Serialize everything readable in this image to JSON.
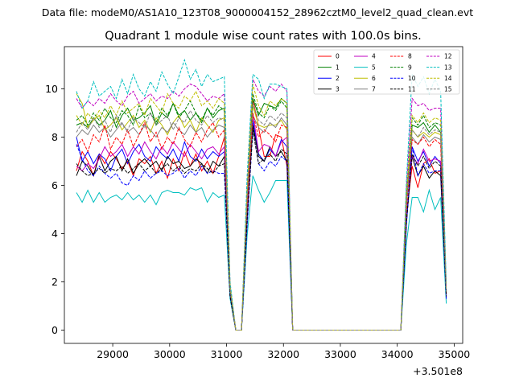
{
  "figure": {
    "suptitle": "Data file: modeM0/AS1A10_123T08_9000004152_28962cztM0_level2_quad_clean.evt"
  },
  "chart_data": {
    "type": "line",
    "title": "Quadrant 1 module wise count rates with 100.0s bins.",
    "xlabel": "",
    "ylabel": "",
    "x_offset_label": "+3.501e8",
    "xlim": [
      28150,
      35150
    ],
    "ylim": [
      -0.55,
      11.75
    ],
    "x_ticks": [
      29000,
      30000,
      31000,
      32000,
      33000,
      34000,
      35000
    ],
    "x_tick_labels": [
      "29000",
      "30000",
      "31000",
      "32000",
      "33000",
      "34000",
      "35000"
    ],
    "y_ticks": [
      0,
      2,
      4,
      6,
      8,
      10
    ],
    "y_tick_labels": [
      "0",
      "2",
      "4",
      "6",
      "8",
      "10"
    ],
    "grid": false,
    "legend_position": "top-right",
    "legend_columns": 4,
    "x": [
      28362,
      28462,
      28562,
      28662,
      28762,
      28862,
      28962,
      29062,
      29162,
      29262,
      29362,
      29462,
      29562,
      29662,
      29762,
      29862,
      29962,
      30062,
      30162,
      30262,
      30362,
      30462,
      30562,
      30662,
      30762,
      30862,
      30962,
      31062,
      31162,
      31262,
      31362,
      31462,
      31562,
      31662,
      31762,
      31862,
      31962,
      32062,
      32162,
      32262,
      32362,
      32462,
      32562,
      32662,
      32762,
      32862,
      32962,
      33062,
      33162,
      33262,
      33362,
      33462,
      33562,
      33662,
      33762,
      33862,
      33962,
      34062,
      34162,
      34262,
      34362,
      34462,
      34562,
      34662,
      34762,
      34862
    ],
    "series": [
      {
        "name": "0",
        "color": "#ff0000",
        "dash": "solid",
        "values": [
          6.6,
          7.4,
          7.0,
          6.4,
          7.3,
          6.9,
          7.4,
          7.1,
          6.7,
          7.0,
          6.4,
          7.1,
          6.9,
          7.2,
          6.5,
          7.0,
          6.3,
          7.1,
          6.6,
          7.4,
          6.8,
          7.3,
          6.6,
          7.0,
          6.5,
          7.2,
          8.0,
          1.6,
          0.0,
          0.0,
          4.8,
          9.6,
          8.4,
          7.2,
          7.2,
          8.1,
          8.0,
          6.8,
          0.0,
          0.0,
          0.0,
          0.0,
          0.0,
          0.0,
          0.0,
          0.0,
          0.0,
          0.0,
          0.0,
          0.0,
          0.0,
          0.0,
          0.0,
          0.0,
          0.0,
          0.0,
          0.0,
          0.0,
          4.8,
          6.8,
          5.9,
          6.9,
          7.1,
          6.5,
          6.6,
          1.5
        ]
      },
      {
        "name": "1",
        "color": "#008000",
        "dash": "solid",
        "values": [
          8.5,
          8.6,
          8.4,
          8.8,
          8.5,
          8.7,
          9.1,
          8.4,
          8.9,
          9.2,
          8.7,
          8.8,
          9.0,
          9.3,
          8.5,
          9.0,
          8.8,
          9.4,
          8.9,
          9.1,
          8.7,
          9.0,
          8.6,
          9.2,
          8.8,
          9.1,
          9.2,
          1.7,
          0.0,
          0.0,
          5.6,
          9.6,
          8.9,
          9.4,
          9.3,
          9.2,
          9.6,
          9.4,
          0.0,
          0.0,
          0.0,
          0.0,
          0.0,
          0.0,
          0.0,
          0.0,
          0.0,
          0.0,
          0.0,
          0.0,
          0.0,
          0.0,
          0.0,
          0.0,
          0.0,
          0.0,
          0.0,
          0.0,
          5.4,
          8.5,
          8.4,
          8.6,
          8.2,
          8.5,
          8.2,
          1.6
        ]
      },
      {
        "name": "2",
        "color": "#0000ff",
        "dash": "solid",
        "values": [
          8.0,
          7.0,
          7.4,
          6.9,
          7.3,
          7.1,
          6.6,
          7.2,
          7.5,
          6.9,
          7.4,
          7.7,
          7.2,
          7.0,
          7.6,
          7.3,
          7.1,
          7.5,
          7.0,
          7.8,
          7.2,
          7.0,
          7.5,
          7.1,
          7.4,
          7.2,
          7.4,
          1.5,
          0.0,
          0.0,
          4.5,
          8.7,
          7.3,
          7.0,
          7.5,
          7.2,
          7.9,
          7.6,
          0.0,
          0.0,
          0.0,
          0.0,
          0.0,
          0.0,
          0.0,
          0.0,
          0.0,
          0.0,
          0.0,
          0.0,
          0.0,
          0.0,
          0.0,
          0.0,
          0.0,
          0.0,
          0.0,
          0.0,
          4.4,
          7.6,
          7.0,
          7.4,
          6.8,
          7.2,
          6.9,
          1.3
        ]
      },
      {
        "name": "3",
        "color": "#000000",
        "dash": "solid",
        "values": [
          6.4,
          7.0,
          6.8,
          6.4,
          7.2,
          6.6,
          7.0,
          7.2,
          6.6,
          7.1,
          6.5,
          6.9,
          7.1,
          6.8,
          7.0,
          6.6,
          7.2,
          6.9,
          7.0,
          6.7,
          6.8,
          7.1,
          6.9,
          6.5,
          7.0,
          6.8,
          7.2,
          1.5,
          0.0,
          0.0,
          4.8,
          8.5,
          7.2,
          7.0,
          7.6,
          7.2,
          7.4,
          7.0,
          0.0,
          0.0,
          0.0,
          0.0,
          0.0,
          0.0,
          0.0,
          0.0,
          0.0,
          0.0,
          0.0,
          0.0,
          0.0,
          0.0,
          0.0,
          0.0,
          0.0,
          0.0,
          0.0,
          0.0,
          4.5,
          7.2,
          6.4,
          6.8,
          6.3,
          6.6,
          6.4,
          1.4
        ]
      },
      {
        "name": "4",
        "color": "#c000c0",
        "dash": "solid",
        "values": [
          6.8,
          6.6,
          6.9,
          6.7,
          7.1,
          7.6,
          7.2,
          7.4,
          7.7,
          7.2,
          7.6,
          7.3,
          7.8,
          7.4,
          7.1,
          7.6,
          7.3,
          7.8,
          7.5,
          7.2,
          7.7,
          7.4,
          7.1,
          7.5,
          7.6,
          7.3,
          7.6,
          1.5,
          0.0,
          0.0,
          4.9,
          9.0,
          7.4,
          7.7,
          7.6,
          7.2,
          7.8,
          8.0,
          0.0,
          0.0,
          0.0,
          0.0,
          0.0,
          0.0,
          0.0,
          0.0,
          0.0,
          0.0,
          0.0,
          0.0,
          0.0,
          0.0,
          0.0,
          0.0,
          0.0,
          0.0,
          0.0,
          0.0,
          4.7,
          7.2,
          6.9,
          7.5,
          7.0,
          7.1,
          7.0,
          1.4
        ]
      },
      {
        "name": "5",
        "color": "#00bfbf",
        "dash": "solid",
        "values": [
          5.7,
          5.3,
          5.8,
          5.3,
          5.7,
          5.3,
          5.5,
          5.6,
          5.4,
          5.7,
          5.4,
          5.6,
          5.3,
          5.6,
          5.2,
          5.7,
          5.8,
          5.7,
          5.7,
          5.6,
          5.9,
          5.8,
          5.9,
          5.3,
          5.7,
          5.5,
          5.6,
          1.3,
          0.0,
          0.0,
          3.9,
          6.4,
          5.8,
          5.3,
          5.7,
          6.2,
          6.2,
          6.2,
          0.0,
          0.0,
          0.0,
          0.0,
          0.0,
          0.0,
          0.0,
          0.0,
          0.0,
          0.0,
          0.0,
          0.0,
          0.0,
          0.0,
          0.0,
          0.0,
          0.0,
          0.0,
          0.0,
          0.0,
          3.6,
          5.5,
          5.5,
          4.9,
          5.8,
          5.0,
          5.5,
          1.1
        ]
      },
      {
        "name": "6",
        "color": "#bfbf00",
        "dash": "solid",
        "values": [
          9.8,
          9.4,
          8.4,
          8.7,
          8.9,
          8.3,
          8.5,
          8.8,
          8.3,
          8.6,
          8.9,
          8.4,
          8.7,
          8.2,
          8.8,
          8.5,
          8.1,
          8.6,
          8.9,
          8.4,
          8.7,
          8.2,
          8.8,
          8.5,
          8.2,
          8.7,
          8.8,
          1.7,
          0.0,
          0.0,
          5.5,
          9.3,
          8.5,
          8.4,
          8.5,
          8.5,
          8.7,
          8.3,
          0.0,
          0.0,
          0.0,
          0.0,
          0.0,
          0.0,
          0.0,
          0.0,
          0.0,
          0.0,
          0.0,
          0.0,
          0.0,
          0.0,
          0.0,
          0.0,
          0.0,
          0.0,
          0.0,
          0.0,
          5.3,
          8.3,
          8.0,
          8.2,
          8.0,
          8.2,
          8.1,
          1.6
        ]
      },
      {
        "name": "7",
        "color": "#808080",
        "dash": "solid",
        "values": [
          8.0,
          8.3,
          8.1,
          8.5,
          8.2,
          8.4,
          8.0,
          8.3,
          8.6,
          8.2,
          8.4,
          8.1,
          8.5,
          8.3,
          8.0,
          8.4,
          8.2,
          8.6,
          8.3,
          8.1,
          8.5,
          8.2,
          8.4,
          8.0,
          8.3,
          8.5,
          8.4,
          1.6,
          0.0,
          0.0,
          5.3,
          8.9,
          8.4,
          8.2,
          8.6,
          8.4,
          8.8,
          8.5,
          0.0,
          0.0,
          0.0,
          0.0,
          0.0,
          0.0,
          0.0,
          0.0,
          0.0,
          0.0,
          0.0,
          0.0,
          0.0,
          0.0,
          0.0,
          0.0,
          0.0,
          0.0,
          0.0,
          0.0,
          5.1,
          8.0,
          7.7,
          8.1,
          7.8,
          8.0,
          7.9,
          1.5
        ]
      },
      {
        "name": "8",
        "color": "#ff0000",
        "dash": "dashed",
        "values": [
          7.6,
          7.9,
          7.4,
          8.1,
          7.8,
          8.5,
          7.5,
          8.0,
          7.7,
          8.3,
          7.6,
          8.1,
          8.6,
          7.8,
          8.2,
          7.5,
          8.0,
          7.7,
          8.4,
          7.9,
          7.6,
          8.2,
          7.8,
          8.3,
          8.6,
          8.0,
          8.3,
          1.6,
          0.0,
          0.0,
          5.0,
          9.0,
          8.0,
          8.3,
          8.1,
          7.8,
          8.5,
          8.4,
          0.0,
          0.0,
          0.0,
          0.0,
          0.0,
          0.0,
          0.0,
          0.0,
          0.0,
          0.0,
          0.0,
          0.0,
          0.0,
          0.0,
          0.0,
          0.0,
          0.0,
          0.0,
          0.0,
          0.0,
          5.0,
          7.9,
          7.7,
          8.0,
          7.6,
          7.9,
          7.7,
          1.5
        ]
      },
      {
        "name": "9",
        "color": "#008000",
        "dash": "dashed",
        "values": [
          8.7,
          8.9,
          8.5,
          9.0,
          8.7,
          9.2,
          8.8,
          8.6,
          9.1,
          8.9,
          8.5,
          9.3,
          8.8,
          9.0,
          8.6,
          9.2,
          8.9,
          9.4,
          8.8,
          9.1,
          9.5,
          9.0,
          8.7,
          9.2,
          8.9,
          9.3,
          9.1,
          1.7,
          0.0,
          0.0,
          5.6,
          9.8,
          9.0,
          8.8,
          9.3,
          9.1,
          9.5,
          9.2,
          0.0,
          0.0,
          0.0,
          0.0,
          0.0,
          0.0,
          0.0,
          0.0,
          0.0,
          0.0,
          0.0,
          0.0,
          0.0,
          0.0,
          0.0,
          0.0,
          0.0,
          0.0,
          0.0,
          0.0,
          5.5,
          8.8,
          8.5,
          8.9,
          8.4,
          8.6,
          8.5,
          1.6
        ]
      },
      {
        "name": "10",
        "color": "#0000ff",
        "dash": "dashed",
        "values": [
          7.7,
          7.1,
          6.6,
          6.4,
          6.8,
          6.5,
          6.3,
          6.5,
          6.1,
          6.0,
          6.4,
          6.2,
          6.6,
          6.3,
          6.5,
          6.6,
          6.4,
          6.5,
          6.7,
          6.3,
          6.6,
          6.4,
          6.8,
          6.5,
          6.6,
          6.5,
          6.5,
          1.4,
          0.0,
          0.0,
          4.3,
          8.3,
          6.9,
          6.6,
          7.0,
          6.8,
          7.2,
          7.0,
          0.0,
          0.0,
          0.0,
          0.0,
          0.0,
          0.0,
          0.0,
          0.0,
          0.0,
          0.0,
          0.0,
          0.0,
          0.0,
          0.0,
          0.0,
          0.0,
          0.0,
          0.0,
          0.0,
          0.0,
          4.4,
          7.6,
          6.4,
          6.9,
          6.5,
          6.6,
          6.6,
          1.3
        ]
      },
      {
        "name": "11",
        "color": "#000000",
        "dash": "dashed",
        "values": [
          6.9,
          6.6,
          6.4,
          6.5,
          6.7,
          6.5,
          6.7,
          6.6,
          6.8,
          6.5,
          6.7,
          6.9,
          6.6,
          6.8,
          6.5,
          6.7,
          6.9,
          6.6,
          6.8,
          6.5,
          6.7,
          6.6,
          6.9,
          6.7,
          6.5,
          6.8,
          6.9,
          1.4,
          0.0,
          0.0,
          4.6,
          8.3,
          6.9,
          7.1,
          7.3,
          7.0,
          7.5,
          7.3,
          0.0,
          0.0,
          0.0,
          0.0,
          0.0,
          0.0,
          0.0,
          0.0,
          0.0,
          0.0,
          0.0,
          0.0,
          0.0,
          0.0,
          0.0,
          0.0,
          0.0,
          0.0,
          0.0,
          0.0,
          4.5,
          7.3,
          6.8,
          7.2,
          6.7,
          7.0,
          6.8,
          1.4
        ]
      },
      {
        "name": "12",
        "color": "#c000c0",
        "dash": "dashed",
        "values": [
          9.6,
          9.2,
          9.5,
          9.3,
          9.6,
          9.4,
          9.8,
          9.5,
          9.3,
          9.7,
          9.9,
          9.4,
          9.6,
          9.8,
          9.5,
          9.7,
          9.6,
          9.9,
          9.7,
          10.0,
          10.2,
          10.1,
          9.8,
          9.5,
          9.7,
          9.6,
          9.8,
          1.9,
          0.0,
          0.0,
          6.0,
          10.4,
          9.9,
          9.7,
          10.1,
          9.9,
          10.2,
          9.9,
          0.0,
          0.0,
          0.0,
          0.0,
          0.0,
          0.0,
          0.0,
          0.0,
          0.0,
          0.0,
          0.0,
          0.0,
          0.0,
          0.0,
          0.0,
          0.0,
          0.0,
          0.0,
          0.0,
          0.0,
          5.9,
          9.6,
          9.3,
          9.4,
          9.1,
          9.2,
          9.2,
          1.8
        ]
      },
      {
        "name": "13",
        "color": "#00bfbf",
        "dash": "dashed",
        "values": [
          9.9,
          9.2,
          9.5,
          10.3,
          9.7,
          9.9,
          10.1,
          9.6,
          10.4,
          9.8,
          10.6,
          10.0,
          9.7,
          10.3,
          9.9,
          10.7,
          10.2,
          9.8,
          10.5,
          11.2,
          10.4,
          10.8,
          10.1,
          10.6,
          10.3,
          10.4,
          10.5,
          2.0,
          0.0,
          0.0,
          6.4,
          10.6,
          10.4,
          9.6,
          10.2,
          10.2,
          10.1,
          10.0,
          0.0,
          0.0,
          0.0,
          0.0,
          0.0,
          0.0,
          0.0,
          0.0,
          0.0,
          0.0,
          0.0,
          0.0,
          0.0,
          0.0,
          0.0,
          0.0,
          0.0,
          0.0,
          0.0,
          0.0,
          6.2,
          10.6,
          10.1,
          10.5,
          9.8,
          10.4,
          9.9,
          1.9
        ]
      },
      {
        "name": "14",
        "color": "#bfbf00",
        "dash": "dashed",
        "values": [
          8.9,
          8.5,
          9.0,
          8.7,
          9.1,
          8.8,
          9.3,
          8.9,
          9.5,
          9.0,
          9.2,
          9.4,
          8.9,
          9.6,
          9.3,
          9.0,
          9.8,
          9.4,
          9.2,
          9.7,
          9.5,
          9.9,
          9.3,
          9.5,
          9.2,
          9.6,
          9.4,
          1.8,
          0.0,
          0.0,
          5.8,
          10.2,
          9.3,
          8.9,
          9.5,
          9.3,
          9.6,
          9.4,
          0.0,
          0.0,
          0.0,
          0.0,
          0.0,
          0.0,
          0.0,
          0.0,
          0.0,
          0.0,
          0.0,
          0.0,
          0.0,
          0.0,
          0.0,
          0.0,
          0.0,
          0.0,
          0.0,
          0.0,
          5.6,
          8.9,
          8.6,
          9.0,
          8.6,
          8.8,
          8.7,
          1.7
        ]
      },
      {
        "name": "15",
        "color": "#808080",
        "dash": "dashed",
        "values": [
          8.2,
          8.6,
          8.3,
          8.8,
          8.4,
          8.7,
          8.2,
          8.9,
          8.5,
          8.3,
          8.8,
          8.6,
          8.4,
          9.0,
          8.5,
          8.7,
          8.9,
          8.3,
          8.8,
          8.6,
          9.1,
          8.7,
          8.5,
          8.9,
          8.6,
          8.8,
          8.7,
          1.7,
          0.0,
          0.0,
          5.5,
          9.4,
          8.7,
          8.5,
          8.9,
          8.7,
          9.0,
          8.8,
          0.0,
          0.0,
          0.0,
          0.0,
          0.0,
          0.0,
          0.0,
          0.0,
          0.0,
          0.0,
          0.0,
          0.0,
          0.0,
          0.0,
          0.0,
          0.0,
          0.0,
          0.0,
          0.0,
          0.0,
          5.2,
          8.3,
          8.0,
          8.4,
          8.1,
          8.3,
          8.2,
          1.6
        ]
      }
    ]
  }
}
